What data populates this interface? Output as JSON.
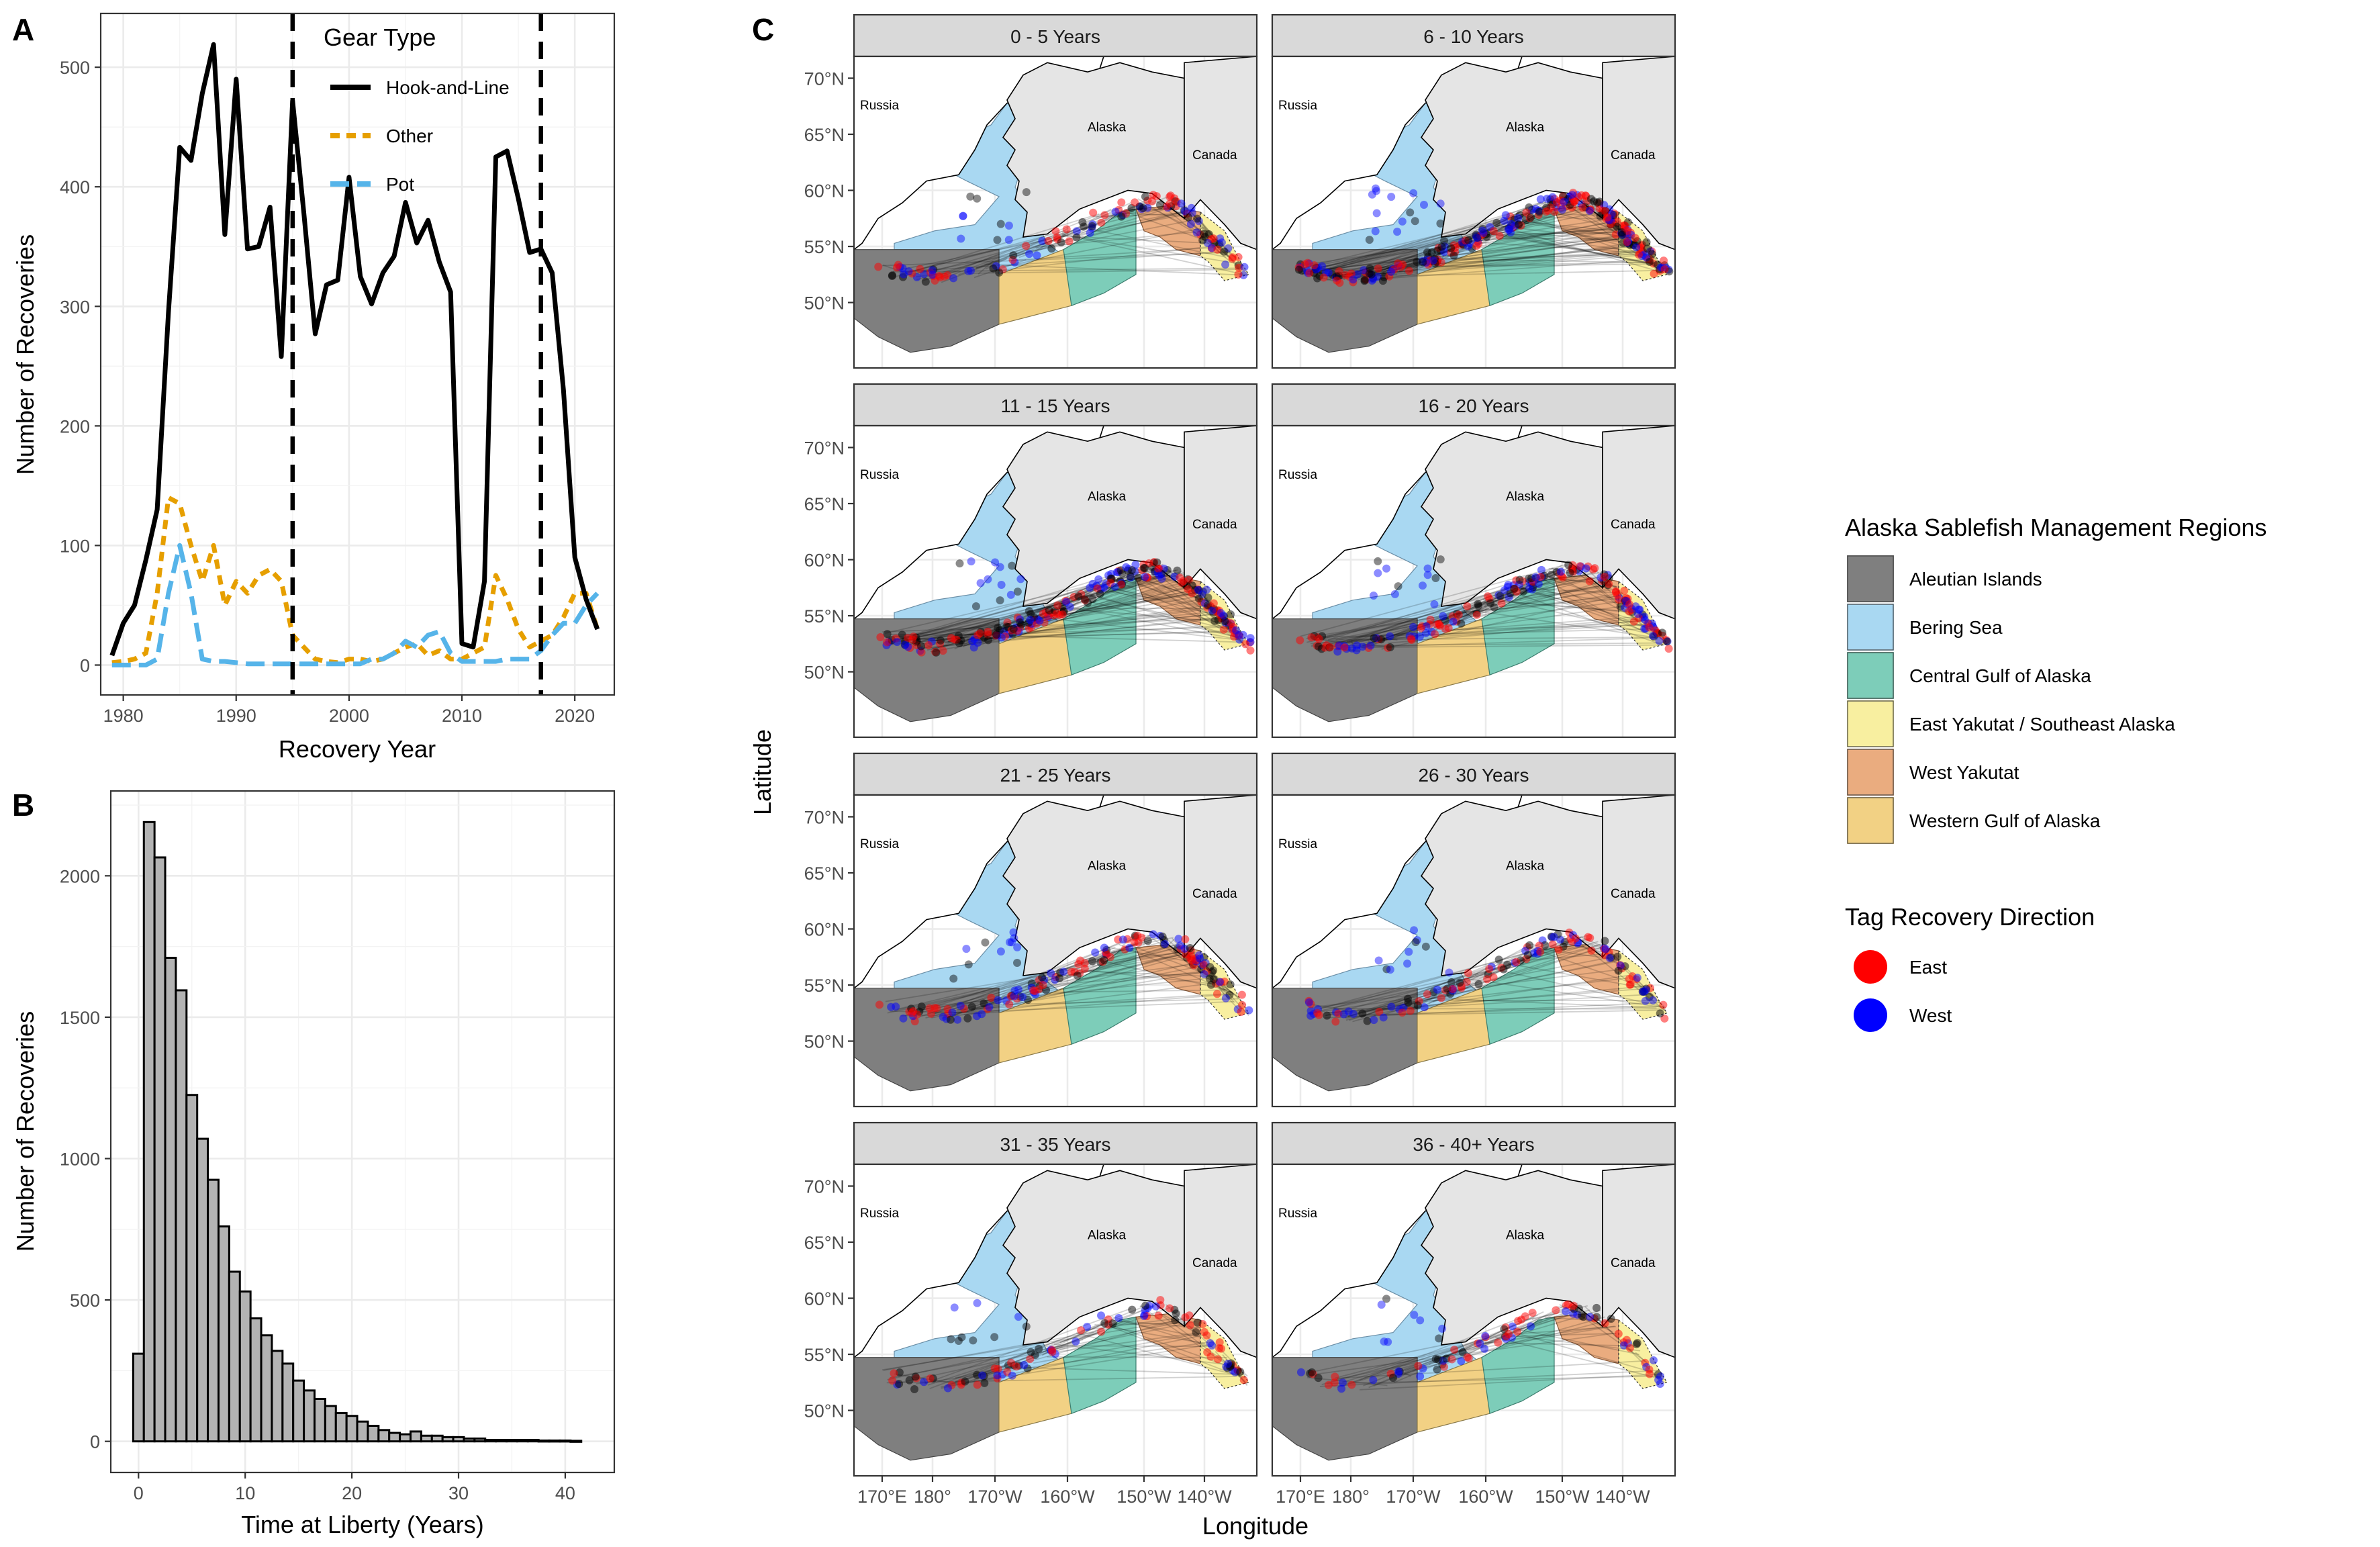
{
  "colors": {
    "hook_and_line": "#000000",
    "other": "#E69F00",
    "pot": "#56B4E9",
    "bar_fill": "#B3B3B3",
    "east": "#FF0000",
    "west": "#0000FF",
    "aleutian_islands": "#7F7F7F",
    "bering_sea": "#A9D8F2",
    "central_goa": "#7DCDB9",
    "east_yakutat": "#F8EFA0",
    "west_yakutat": "#EAAC7F",
    "western_goa": "#F2D184",
    "land": "#E5E5E5"
  },
  "panel_a": {
    "tag": "A",
    "xlabel": "Recovery Year",
    "ylabel": "Number of Recoveries",
    "legend_title": "Gear Type",
    "vlines": [
      1995,
      2017
    ],
    "chart_data": {
      "type": "line",
      "xlim": [
        1978,
        2023.5
      ],
      "ylim": [
        -25,
        545
      ],
      "x_ticks": [
        1980,
        1990,
        2000,
        2010,
        2020
      ],
      "y_ticks": [
        0,
        100,
        200,
        300,
        400,
        500
      ],
      "series": [
        {
          "name": "Hook-and-Line",
          "style": "solid",
          "x": [
            1979,
            1980,
            1981,
            1982,
            1983,
            1984,
            1985,
            1986,
            1987,
            1988,
            1989,
            1990,
            1991,
            1992,
            1993,
            1994,
            1995,
            1996,
            1997,
            1998,
            1999,
            2000,
            2001,
            2002,
            2003,
            2004,
            2005,
            2006,
            2007,
            2008,
            2009,
            2010,
            2011,
            2012,
            2013,
            2014,
            2015,
            2016,
            2017,
            2018,
            2019,
            2020,
            2021,
            2022
          ],
          "values": [
            8,
            35,
            50,
            88,
            130,
            295,
            433,
            422,
            478,
            519,
            360,
            490,
            348,
            350,
            383,
            258,
            472,
            378,
            277,
            318,
            322,
            408,
            325,
            302,
            328,
            342,
            387,
            353,
            372,
            337,
            312,
            18,
            15,
            70,
            425,
            430,
            390,
            345,
            348,
            328,
            230,
            90,
            55,
            30
          ]
        },
        {
          "name": "Other",
          "style": "dashed",
          "x": [
            1979,
            1980,
            1981,
            1982,
            1983,
            1984,
            1985,
            1986,
            1987,
            1988,
            1989,
            1990,
            1991,
            1992,
            1993,
            1994,
            1995,
            1996,
            1997,
            1998,
            1999,
            2000,
            2001,
            2002,
            2003,
            2004,
            2005,
            2006,
            2007,
            2008,
            2009,
            2010,
            2011,
            2012,
            2013,
            2014,
            2015,
            2016,
            2017,
            2018,
            2019,
            2020,
            2021,
            2022
          ],
          "values": [
            2,
            3,
            5,
            10,
            60,
            140,
            135,
            100,
            70,
            100,
            50,
            70,
            60,
            75,
            80,
            70,
            25,
            15,
            5,
            3,
            2,
            5,
            5,
            3,
            5,
            10,
            15,
            18,
            8,
            12,
            5,
            5,
            10,
            15,
            75,
            55,
            30,
            15,
            20,
            25,
            40,
            60,
            60,
            30
          ]
        },
        {
          "name": "Pot",
          "style": "longdash",
          "x": [
            1979,
            1980,
            1981,
            1982,
            1983,
            1984,
            1985,
            1986,
            1987,
            1988,
            1989,
            1990,
            1991,
            1992,
            1993,
            1994,
            1995,
            1996,
            1997,
            1998,
            1999,
            2000,
            2001,
            2002,
            2003,
            2004,
            2005,
            2006,
            2007,
            2008,
            2009,
            2010,
            2011,
            2012,
            2013,
            2014,
            2015,
            2016,
            2017,
            2018,
            2019,
            2020,
            2021,
            2022
          ],
          "values": [
            0,
            0,
            0,
            0,
            5,
            60,
            100,
            60,
            5,
            3,
            3,
            2,
            1,
            1,
            1,
            1,
            1,
            1,
            1,
            1,
            1,
            1,
            1,
            5,
            5,
            10,
            20,
            15,
            25,
            28,
            10,
            3,
            3,
            3,
            3,
            5,
            5,
            5,
            12,
            25,
            35,
            35,
            50,
            60
          ]
        }
      ]
    }
  },
  "panel_b": {
    "tag": "B",
    "xlabel": "Time at Liberty (Years)",
    "ylabel": "Number of Recoveries",
    "chart_data": {
      "type": "bar",
      "bin_width": 1,
      "x_ticks": [
        0,
        10,
        20,
        30,
        40
      ],
      "y_ticks": [
        0,
        500,
        1000,
        1500,
        2000
      ],
      "xlim": [
        -2.6,
        44.6
      ],
      "ylim": [
        -110,
        2300
      ],
      "bins_start": [
        0,
        1,
        2,
        3,
        4,
        5,
        6,
        7,
        8,
        9,
        10,
        11,
        12,
        13,
        14,
        15,
        16,
        17,
        18,
        19,
        20,
        21,
        22,
        23,
        24,
        25,
        26,
        27,
        28,
        29,
        30,
        31,
        32,
        33,
        34,
        35,
        36,
        37,
        38,
        39,
        40,
        41
      ],
      "values": [
        310,
        2190,
        2065,
        1710,
        1595,
        1225,
        1070,
        925,
        760,
        600,
        530,
        435,
        375,
        320,
        275,
        215,
        180,
        150,
        125,
        100,
        90,
        70,
        55,
        40,
        30,
        25,
        35,
        20,
        20,
        15,
        15,
        10,
        10,
        5,
        5,
        5,
        5,
        5,
        3,
        3,
        3,
        2
      ]
    }
  },
  "panel_c": {
    "tag": "C",
    "xlabel": "Longitude",
    "ylabel": "Latitude",
    "lat_ticks": [
      "70°N",
      "65°N",
      "60°N",
      "55°N",
      "50°N"
    ],
    "lon_ticks": [
      "170°E",
      "180°",
      "170°W",
      "160°W",
      "150°W",
      "140°W"
    ],
    "place_labels": {
      "russia": "Russia",
      "alaska": "Alaska",
      "canada": "Canada"
    },
    "facets": [
      {
        "label": "0 - 5 Years",
        "density": 0.35
      },
      {
        "label": "6 - 10 Years",
        "density": 1.0
      },
      {
        "label": "11 - 15 Years",
        "density": 0.8
      },
      {
        "label": "16 - 20 Years",
        "density": 0.6
      },
      {
        "label": "21 - 25 Years",
        "density": 0.45
      },
      {
        "label": "26 - 30 Years",
        "density": 0.35
      },
      {
        "label": "31 - 35 Years",
        "density": 0.25
      },
      {
        "label": "36 - 40+ Years",
        "density": 0.2
      }
    ]
  },
  "legend_regions": {
    "title": "Alaska Sablefish Management Regions",
    "items": [
      {
        "label": "Aleutian Islands",
        "color": "#7F7F7F"
      },
      {
        "label": "Bering Sea",
        "color": "#A9D8F2"
      },
      {
        "label": "Central Gulf of Alaska",
        "color": "#7DCDB9"
      },
      {
        "label": "East Yakutat / Southeast Alaska",
        "color": "#F8EFA0"
      },
      {
        "label": "West Yakutat",
        "color": "#EAAC7F"
      },
      {
        "label": "Western Gulf of Alaska",
        "color": "#F2D184"
      }
    ]
  },
  "legend_direction": {
    "title": "Tag Recovery Direction",
    "items": [
      {
        "label": "East",
        "color": "#FF0000"
      },
      {
        "label": "West",
        "color": "#0000FF"
      }
    ]
  }
}
